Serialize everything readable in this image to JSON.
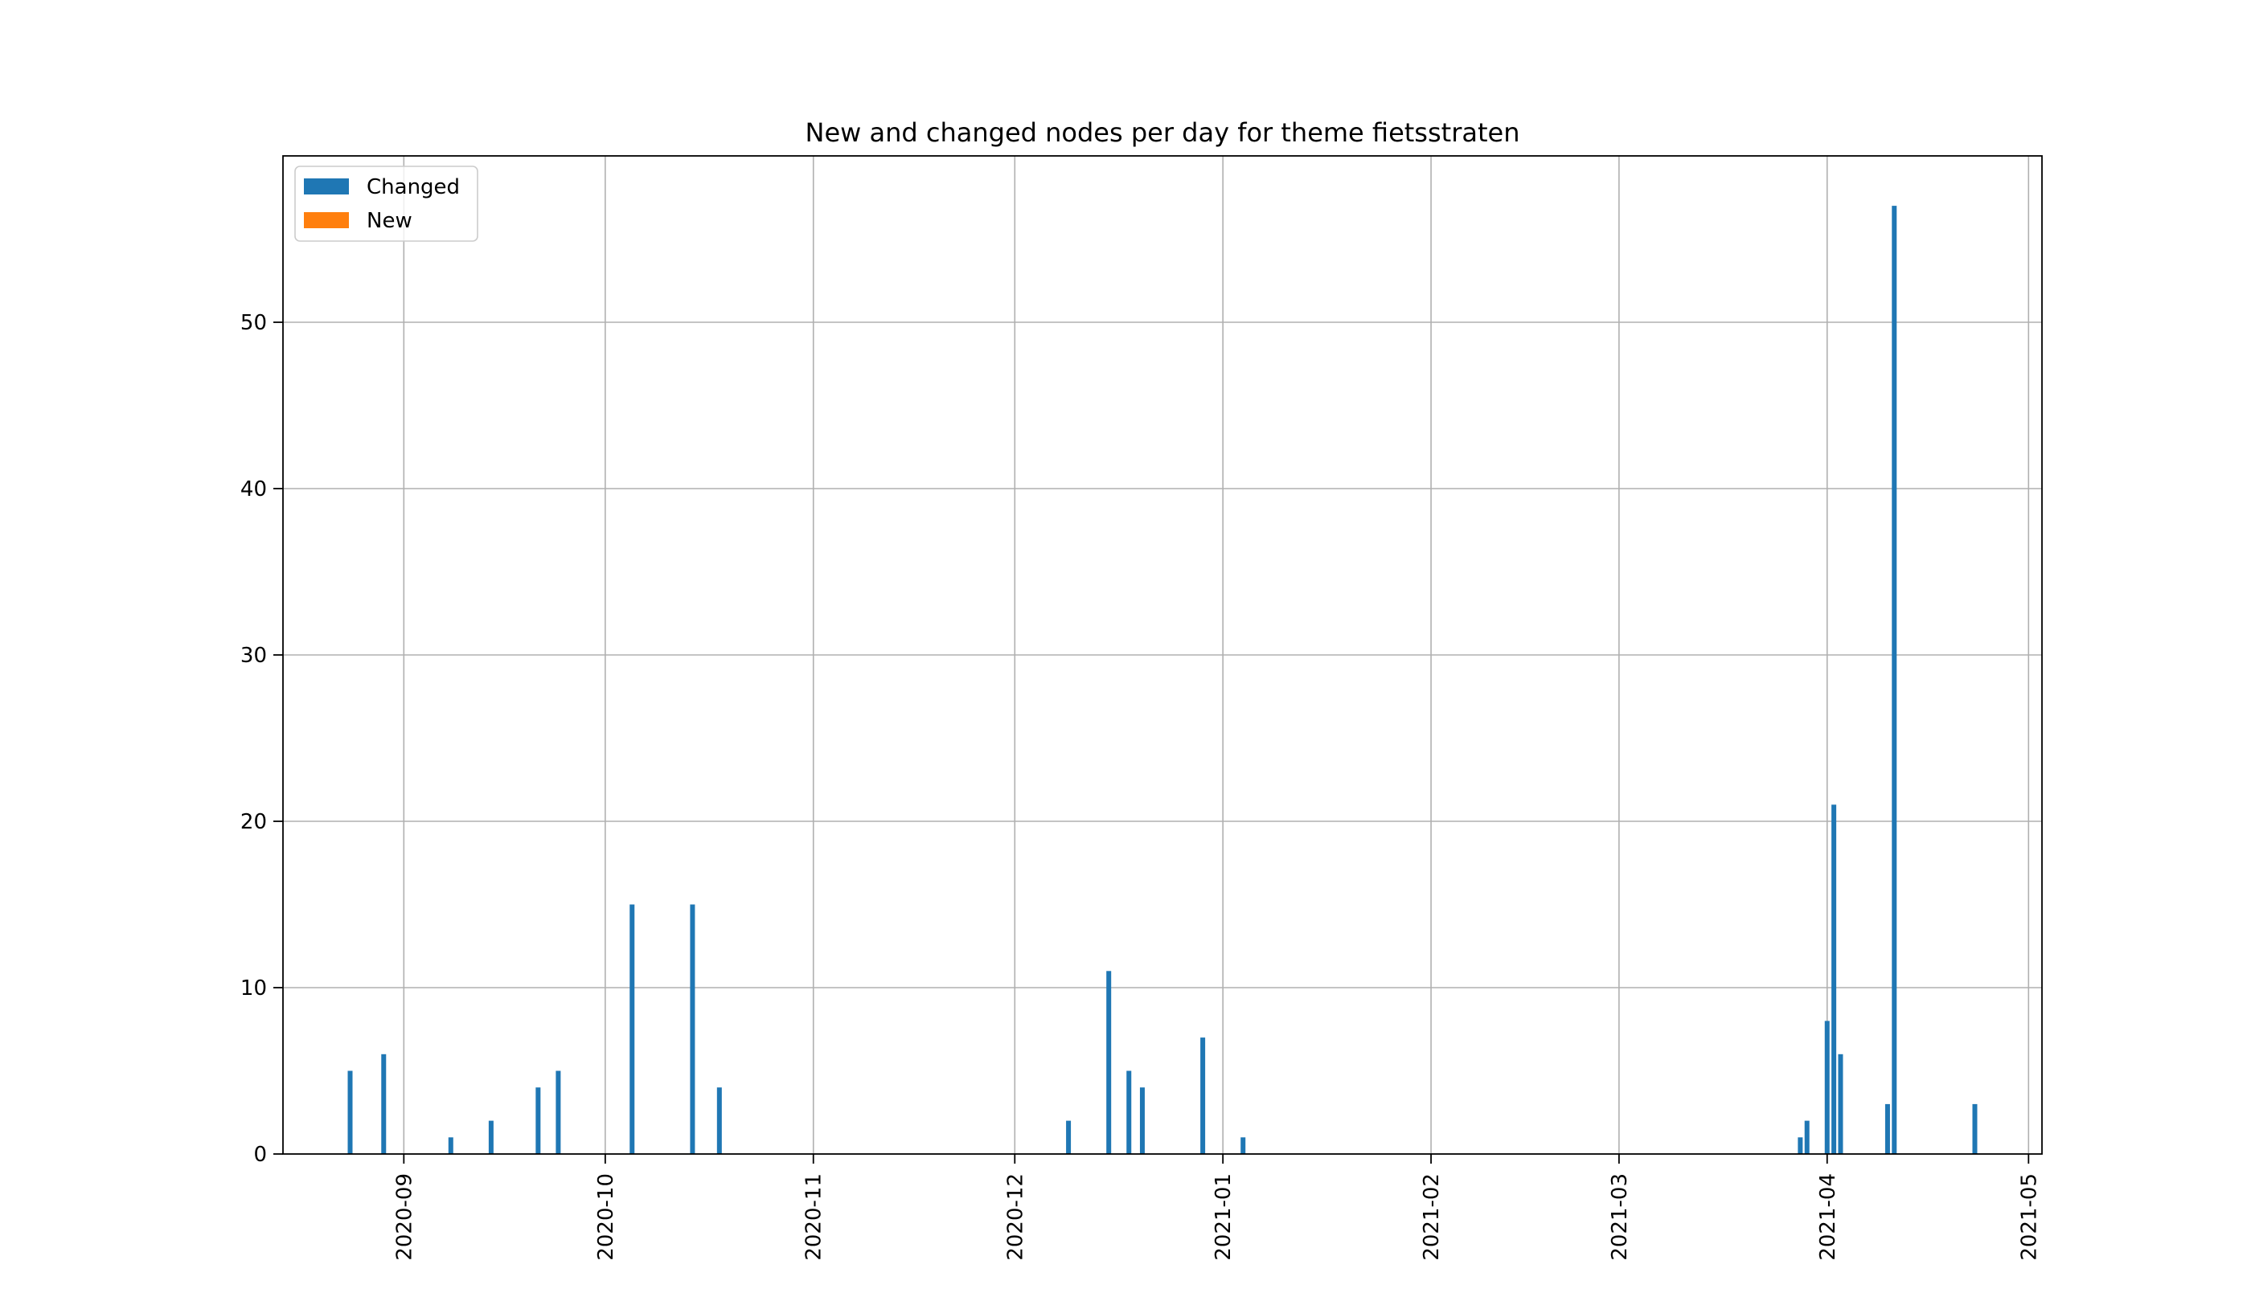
{
  "chart_data": {
    "type": "bar",
    "title": "New and changed nodes per day for theme fietsstraten",
    "xlabel": "",
    "ylabel": "",
    "ylim": [
      0,
      60
    ],
    "xlim": [
      "2020-08-14",
      "2021-05-03"
    ],
    "grid": true,
    "legend_position": "top-left",
    "x_ticks": [
      "2020-09",
      "2020-10",
      "2020-11",
      "2020-12",
      "2021-01",
      "2021-02",
      "2021-03",
      "2021-04",
      "2021-05"
    ],
    "y_ticks": [
      "0",
      "10",
      "20",
      "30",
      "40",
      "50"
    ],
    "series": [
      {
        "name": "Changed",
        "color": "#1f77b4",
        "points": [
          {
            "x": "2020-08-24",
            "y": 5
          },
          {
            "x": "2020-08-29",
            "y": 6
          },
          {
            "x": "2020-09-08",
            "y": 1
          },
          {
            "x": "2020-09-14",
            "y": 2
          },
          {
            "x": "2020-09-21",
            "y": 4
          },
          {
            "x": "2020-09-24",
            "y": 5
          },
          {
            "x": "2020-10-05",
            "y": 15
          },
          {
            "x": "2020-10-14",
            "y": 15
          },
          {
            "x": "2020-10-18",
            "y": 4
          },
          {
            "x": "2020-12-09",
            "y": 2
          },
          {
            "x": "2020-12-15",
            "y": 11
          },
          {
            "x": "2020-12-18",
            "y": 5
          },
          {
            "x": "2020-12-20",
            "y": 4
          },
          {
            "x": "2020-12-29",
            "y": 7
          },
          {
            "x": "2021-01-04",
            "y": 1
          },
          {
            "x": "2021-03-28",
            "y": 1
          },
          {
            "x": "2021-03-29",
            "y": 2
          },
          {
            "x": "2021-04-01",
            "y": 8
          },
          {
            "x": "2021-04-02",
            "y": 21
          },
          {
            "x": "2021-04-03",
            "y": 6
          },
          {
            "x": "2021-04-10",
            "y": 3
          },
          {
            "x": "2021-04-11",
            "y": 57
          },
          {
            "x": "2021-04-23",
            "y": 3
          }
        ]
      },
      {
        "name": "New",
        "color": "#ff7f0e",
        "points": []
      }
    ]
  }
}
